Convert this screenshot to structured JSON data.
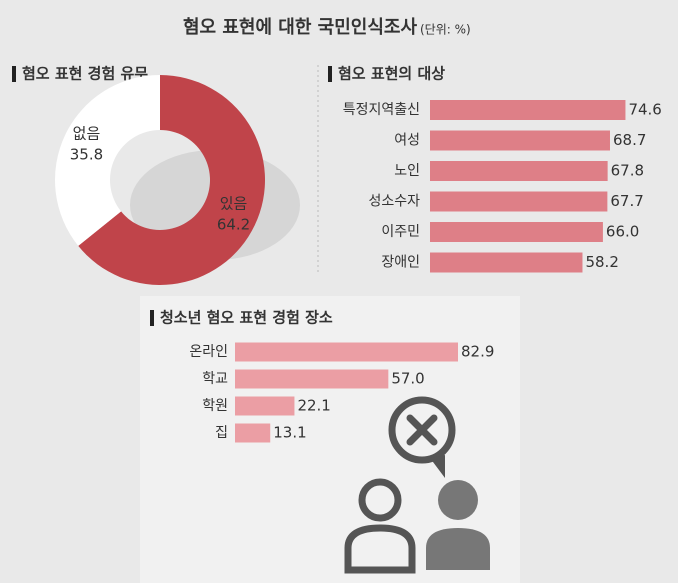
{
  "title": "혐오 표현에 대한 국민인식조사",
  "subtitle": "(단위: %)",
  "chart_data": [
    {
      "type": "pie",
      "title": "혐오 표현 경험 유무",
      "categories": [
        "있음",
        "없음"
      ],
      "values": [
        64.2,
        35.8
      ],
      "colors": [
        "#c0444a",
        "#ffffff"
      ],
      "donut": true
    },
    {
      "type": "hbar",
      "title": "혐오 표현의 대상",
      "categories": [
        "특정지역출신",
        "여성",
        "노인",
        "성소수자",
        "이주민",
        "장애인"
      ],
      "values": [
        74.6,
        68.7,
        67.8,
        67.7,
        66.0,
        58.2
      ],
      "value_labels": [
        "74.6",
        "68.7",
        "67.8",
        "67.7",
        "66.0",
        "58.2"
      ],
      "color": "#de7f87"
    },
    {
      "type": "hbar",
      "title": "청소년 혐오 표현 경험 장소",
      "categories": [
        "온라인",
        "학교",
        "학원",
        "집"
      ],
      "values": [
        82.9,
        57.0,
        22.1,
        13.1
      ],
      "value_labels": [
        "82.9",
        "57.0",
        "22.1",
        "13.1"
      ],
      "color": "#eb9ea4"
    }
  ]
}
